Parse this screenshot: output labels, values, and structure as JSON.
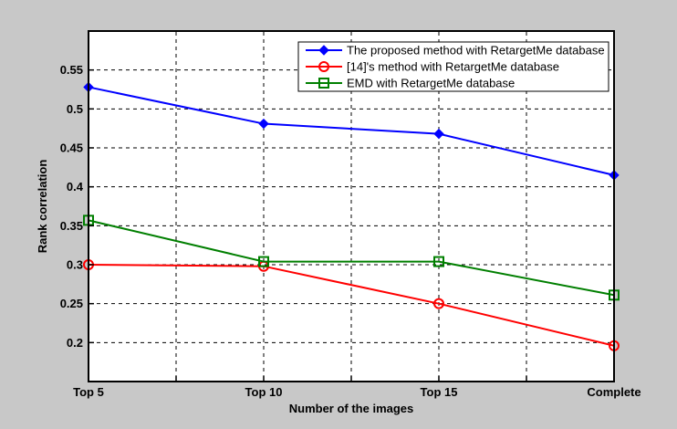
{
  "figure": {
    "background": "#C8C8C8",
    "plot_background": "#FFFFFF",
    "axis_color": "#000000",
    "grid_color": "#000000"
  },
  "chart_data": {
    "type": "line",
    "title": "",
    "xlabel": "Number of the images",
    "ylabel": "Rank correlation",
    "categories": [
      "Top 5",
      "Top 10",
      "Top 15",
      "Complete"
    ],
    "series": [
      {
        "name": "The proposed method with RetargetMe database",
        "color": "#0000FF",
        "marker": "diamond",
        "marker_fill": "filled",
        "values": [
          0.528,
          0.481,
          0.468,
          0.415
        ]
      },
      {
        "name": "[14]'s method with RetargetMe database",
        "color": "#FF0000",
        "marker": "circle",
        "marker_fill": "open",
        "values": [
          0.3,
          0.298,
          0.25,
          0.196
        ]
      },
      {
        "name": "EMD with RetargetMe database",
        "color": "#007F00",
        "marker": "square",
        "marker_fill": "open",
        "values": [
          0.357,
          0.304,
          0.304,
          0.261
        ]
      }
    ],
    "ylim": [
      0.15,
      0.6
    ],
    "yticks": [
      0.2,
      0.25,
      0.3,
      0.35,
      0.4,
      0.45,
      0.5,
      0.55
    ],
    "ytick_labels": [
      "0.2",
      "0.25",
      "0.3",
      "0.35",
      "0.4",
      "0.45",
      "0.5",
      "0.55"
    ],
    "x_minor_gridlines": true,
    "grid": "dashed",
    "legend_position": "top-right"
  }
}
